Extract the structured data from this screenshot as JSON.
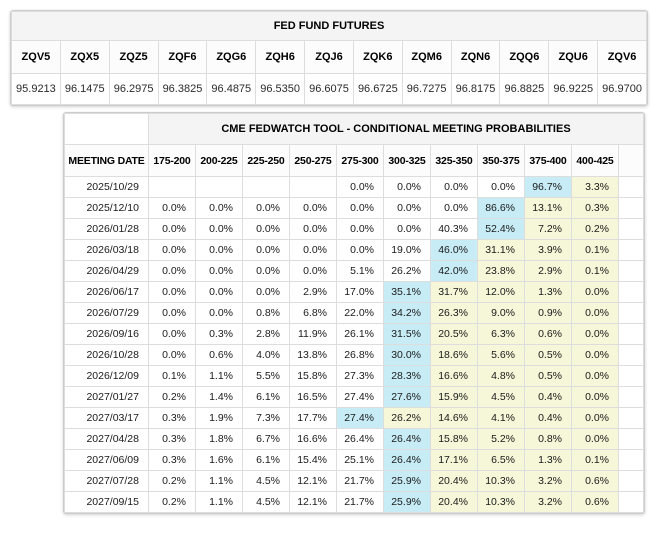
{
  "futures_table": {
    "title": "FED FUND FUTURES",
    "columns": [
      "ZQV5",
      "ZQX5",
      "ZQZ5",
      "ZQF6",
      "ZQG6",
      "ZQH6",
      "ZQJ6",
      "ZQK6",
      "ZQM6",
      "ZQN6",
      "ZQQ6",
      "ZQU6",
      "ZQV6"
    ],
    "values": [
      "95.9213",
      "96.1475",
      "96.2975",
      "96.3825",
      "96.4875",
      "96.5350",
      "96.6075",
      "96.6725",
      "96.7275",
      "96.8175",
      "96.8825",
      "96.9225",
      "96.9700"
    ]
  },
  "fedwatch_table": {
    "title": "CME FEDWATCH TOOL - CONDITIONAL MEETING PROBABILITIES",
    "date_header": "MEETING DATE",
    "rate_headers": [
      "175-200",
      "200-225",
      "225-250",
      "250-275",
      "275-300",
      "300-325",
      "325-350",
      "350-375",
      "375-400",
      "400-425"
    ],
    "rows": [
      {
        "date": "2025/10/29",
        "cells": [
          "",
          "",
          "",
          "",
          "0.0%",
          "0.0%",
          "0.0%",
          "0.0%",
          "96.7%",
          "3.3%"
        ],
        "highlights": [
          "",
          "",
          "",
          "",
          "",
          "",
          "",
          "",
          "max",
          "tail"
        ]
      },
      {
        "date": "2025/12/10",
        "cells": [
          "0.0%",
          "0.0%",
          "0.0%",
          "0.0%",
          "0.0%",
          "0.0%",
          "0.0%",
          "86.6%",
          "13.1%",
          "0.3%"
        ],
        "highlights": [
          "",
          "",
          "",
          "",
          "",
          "",
          "",
          "max",
          "tail",
          "tail"
        ]
      },
      {
        "date": "2026/01/28",
        "cells": [
          "0.0%",
          "0.0%",
          "0.0%",
          "0.0%",
          "0.0%",
          "0.0%",
          "40.3%",
          "52.4%",
          "7.2%",
          "0.2%"
        ],
        "highlights": [
          "",
          "",
          "",
          "",
          "",
          "",
          "",
          "max",
          "tail",
          "tail"
        ]
      },
      {
        "date": "2026/03/18",
        "cells": [
          "0.0%",
          "0.0%",
          "0.0%",
          "0.0%",
          "0.0%",
          "19.0%",
          "46.0%",
          "31.1%",
          "3.9%",
          "0.1%"
        ],
        "highlights": [
          "",
          "",
          "",
          "",
          "",
          "",
          "max",
          "tail",
          "tail",
          "tail"
        ]
      },
      {
        "date": "2026/04/29",
        "cells": [
          "0.0%",
          "0.0%",
          "0.0%",
          "0.0%",
          "5.1%",
          "26.2%",
          "42.0%",
          "23.8%",
          "2.9%",
          "0.1%"
        ],
        "highlights": [
          "",
          "",
          "",
          "",
          "",
          "",
          "max",
          "tail",
          "tail",
          "tail"
        ]
      },
      {
        "date": "2026/06/17",
        "cells": [
          "0.0%",
          "0.0%",
          "0.0%",
          "2.9%",
          "17.0%",
          "35.1%",
          "31.7%",
          "12.0%",
          "1.3%",
          "0.0%"
        ],
        "highlights": [
          "",
          "",
          "",
          "",
          "",
          "max",
          "tail",
          "tail",
          "tail",
          "tail"
        ]
      },
      {
        "date": "2026/07/29",
        "cells": [
          "0.0%",
          "0.0%",
          "0.8%",
          "6.8%",
          "22.0%",
          "34.2%",
          "26.3%",
          "9.0%",
          "0.9%",
          "0.0%"
        ],
        "highlights": [
          "",
          "",
          "",
          "",
          "",
          "max",
          "tail",
          "tail",
          "tail",
          "tail"
        ]
      },
      {
        "date": "2026/09/16",
        "cells": [
          "0.0%",
          "0.3%",
          "2.8%",
          "11.9%",
          "26.1%",
          "31.5%",
          "20.5%",
          "6.3%",
          "0.6%",
          "0.0%"
        ],
        "highlights": [
          "",
          "",
          "",
          "",
          "",
          "max",
          "tail",
          "tail",
          "tail",
          "tail"
        ]
      },
      {
        "date": "2026/10/28",
        "cells": [
          "0.0%",
          "0.6%",
          "4.0%",
          "13.8%",
          "26.8%",
          "30.0%",
          "18.6%",
          "5.6%",
          "0.5%",
          "0.0%"
        ],
        "highlights": [
          "",
          "",
          "",
          "",
          "",
          "max",
          "tail",
          "tail",
          "tail",
          "tail"
        ]
      },
      {
        "date": "2026/12/09",
        "cells": [
          "0.1%",
          "1.1%",
          "5.5%",
          "15.8%",
          "27.3%",
          "28.3%",
          "16.6%",
          "4.8%",
          "0.5%",
          "0.0%"
        ],
        "highlights": [
          "",
          "",
          "",
          "",
          "",
          "max",
          "tail",
          "tail",
          "tail",
          "tail"
        ]
      },
      {
        "date": "2027/01/27",
        "cells": [
          "0.2%",
          "1.4%",
          "6.1%",
          "16.5%",
          "27.4%",
          "27.6%",
          "15.9%",
          "4.5%",
          "0.4%",
          "0.0%"
        ],
        "highlights": [
          "",
          "",
          "",
          "",
          "",
          "max",
          "tail",
          "tail",
          "tail",
          "tail"
        ]
      },
      {
        "date": "2027/03/17",
        "cells": [
          "0.3%",
          "1.9%",
          "7.3%",
          "17.7%",
          "27.4%",
          "26.2%",
          "14.6%",
          "4.1%",
          "0.4%",
          "0.0%"
        ],
        "highlights": [
          "",
          "",
          "",
          "",
          "max",
          "tail",
          "tail",
          "tail",
          "tail",
          "tail"
        ]
      },
      {
        "date": "2027/04/28",
        "cells": [
          "0.3%",
          "1.8%",
          "6.7%",
          "16.6%",
          "26.4%",
          "26.4%",
          "15.8%",
          "5.2%",
          "0.8%",
          "0.0%"
        ],
        "highlights": [
          "",
          "",
          "",
          "",
          "",
          "max",
          "tail",
          "tail",
          "tail",
          "tail"
        ]
      },
      {
        "date": "2027/06/09",
        "cells": [
          "0.3%",
          "1.6%",
          "6.1%",
          "15.4%",
          "25.1%",
          "26.4%",
          "17.1%",
          "6.5%",
          "1.3%",
          "0.1%"
        ],
        "highlights": [
          "",
          "",
          "",
          "",
          "",
          "max",
          "tail",
          "tail",
          "tail",
          "tail"
        ]
      },
      {
        "date": "2027/07/28",
        "cells": [
          "0.2%",
          "1.1%",
          "4.5%",
          "12.1%",
          "21.7%",
          "25.9%",
          "20.4%",
          "10.3%",
          "3.2%",
          "0.6%"
        ],
        "highlights": [
          "",
          "",
          "",
          "",
          "",
          "max",
          "tail",
          "tail",
          "tail",
          "tail"
        ]
      },
      {
        "date": "2027/09/15",
        "cells": [
          "0.2%",
          "1.1%",
          "4.5%",
          "12.1%",
          "21.7%",
          "25.9%",
          "20.4%",
          "10.3%",
          "3.2%",
          "0.6%"
        ],
        "highlights": [
          "",
          "",
          "",
          "",
          "",
          "max",
          "tail",
          "tail",
          "tail",
          "tail"
        ]
      }
    ]
  },
  "colors": {
    "max_probability_cell": "#c7ecf5",
    "tail_probability_cell": "#f6f6d9",
    "panel_header_bg": "#f4f4f4",
    "grid_border": "#dddddd"
  }
}
